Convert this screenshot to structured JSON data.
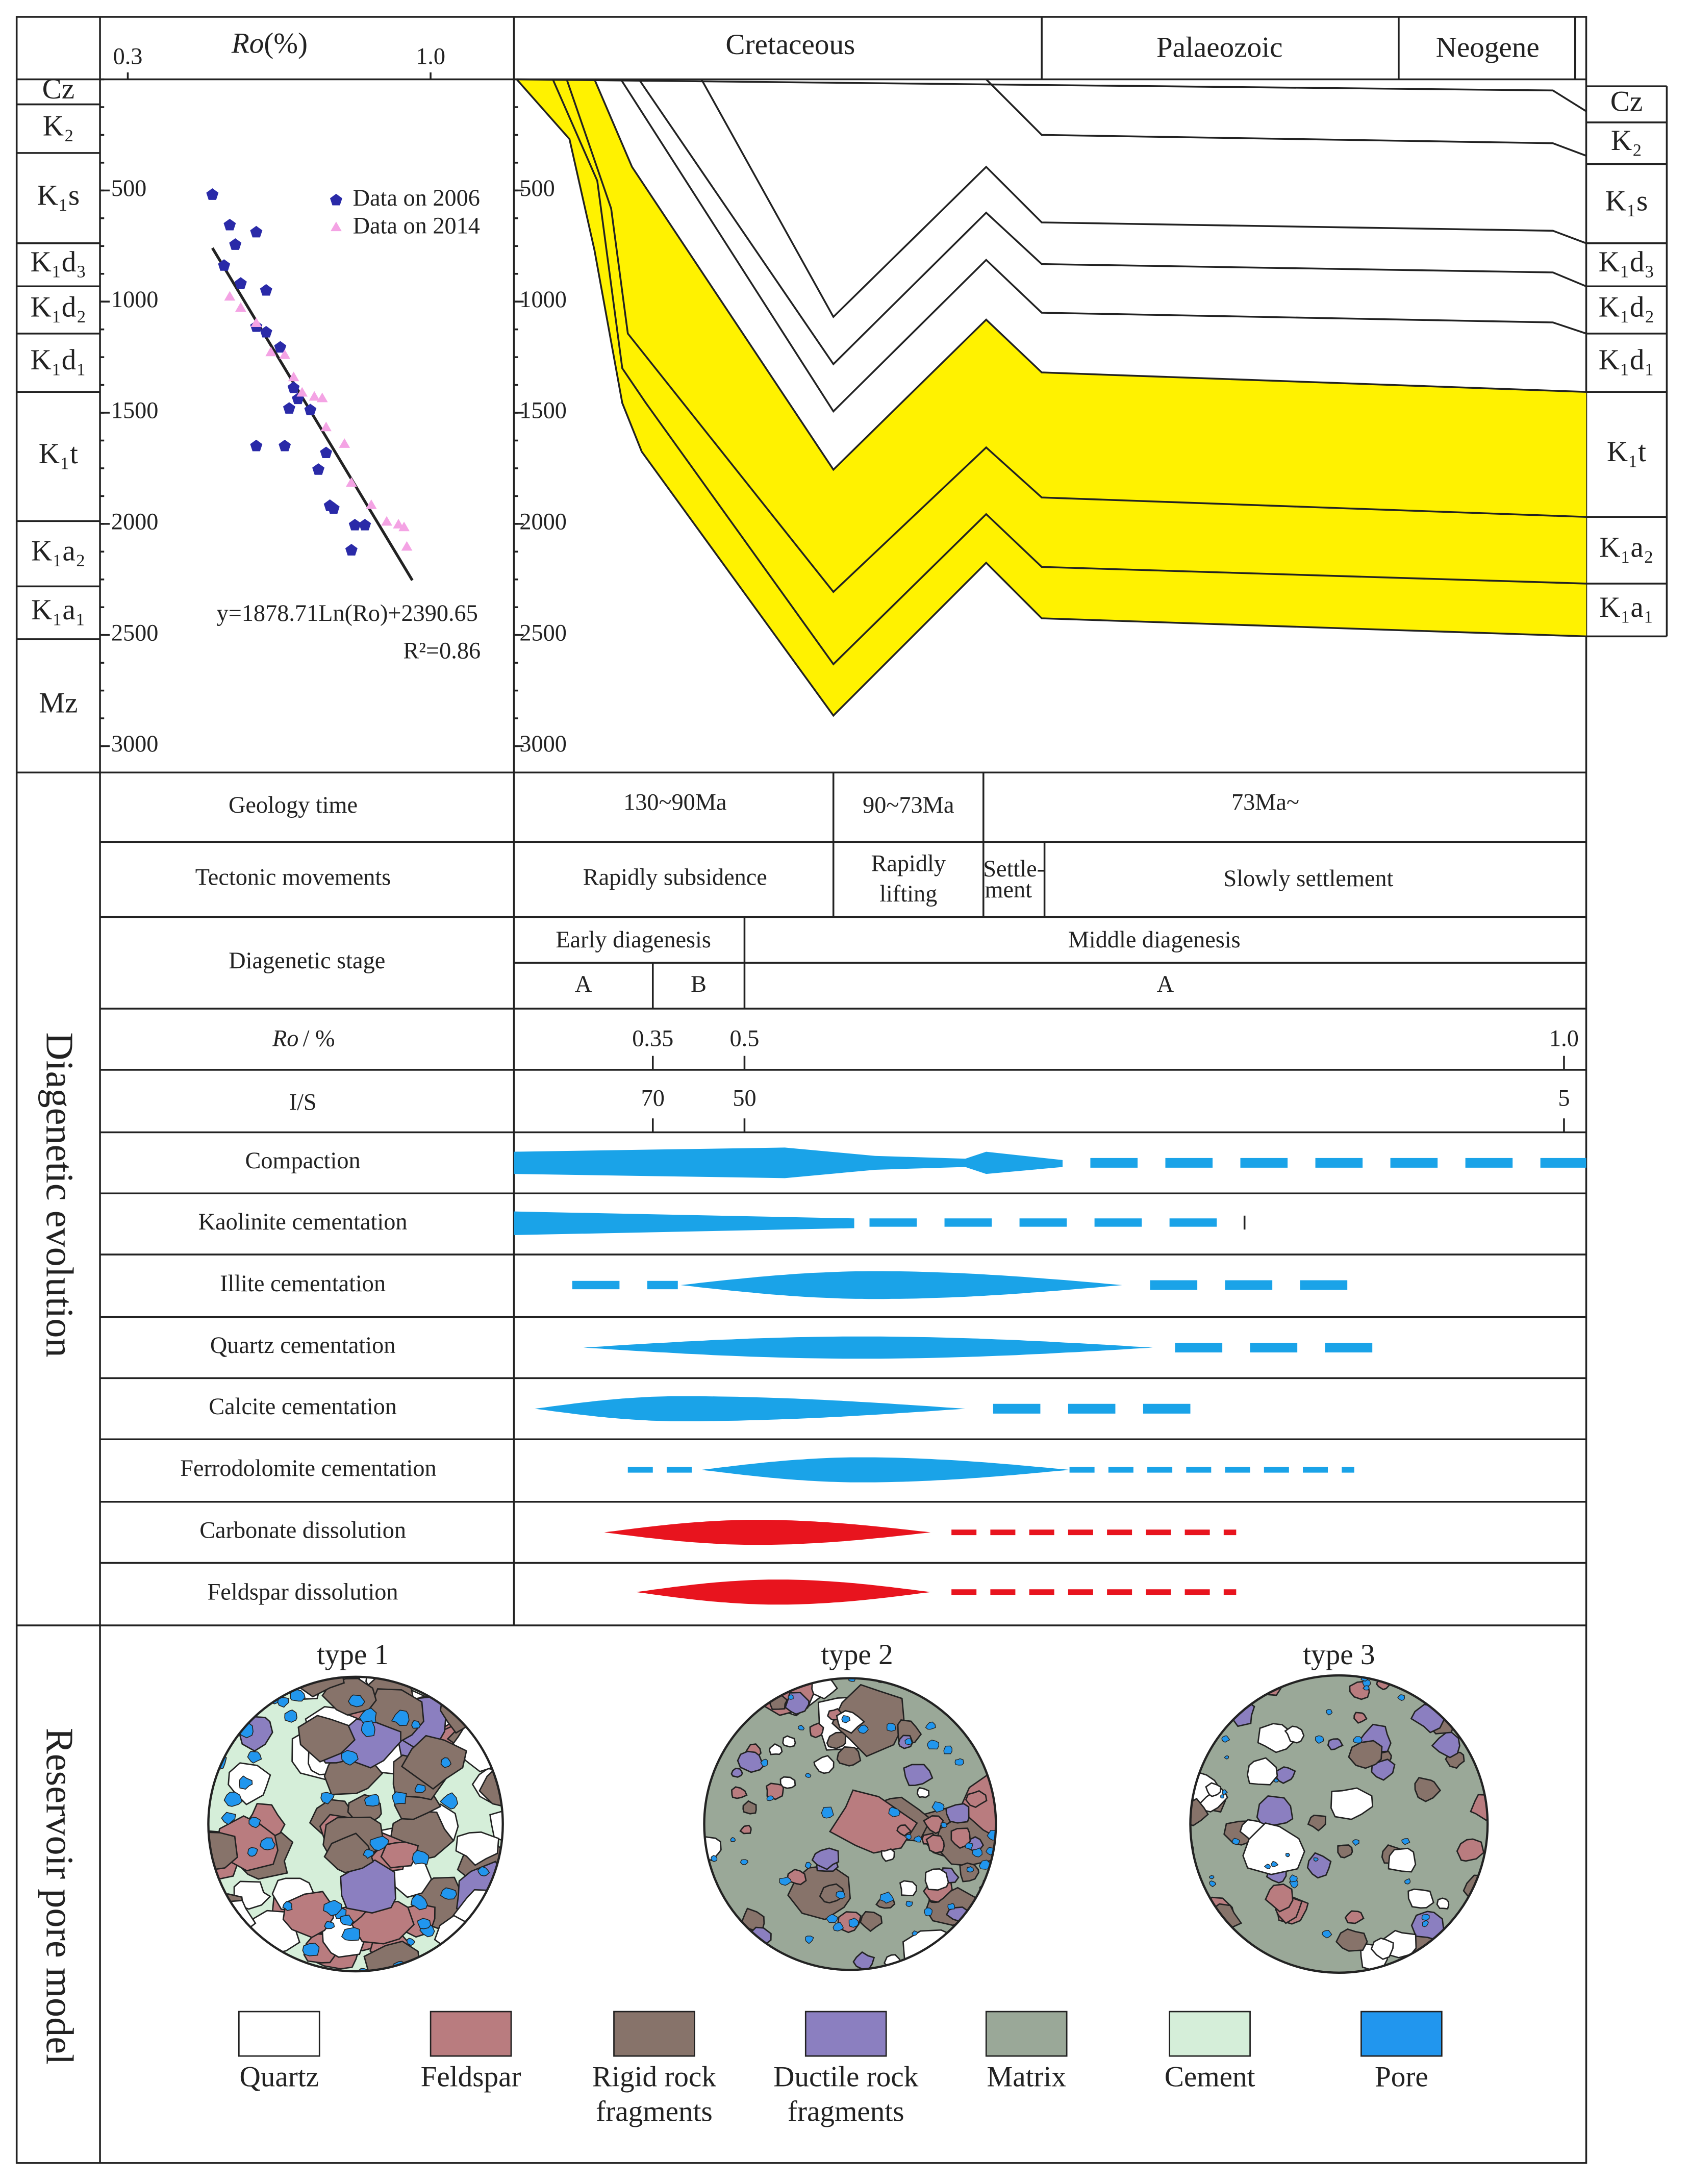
{
  "ro_plot": {
    "x_label_italic": "Ro",
    "x_label_unit": "(%)",
    "x_ticks": [
      0.3,
      {
        "value": 1,
        "label": "1.0"
      }
    ],
    "depth_ticks": [
      500,
      1000,
      1500,
      2000,
      2500,
      3000
    ],
    "strat": [
      "Cz",
      "K₂",
      "K₁s",
      "K₁d₃",
      "K₁d₂",
      "K₁d₁",
      "K₁t",
      "K₁a₂",
      "K₁a₁",
      "Mz"
    ],
    "series": [
      {
        "name": "Data on 2006",
        "color": "#2a2aa8",
        "points": [
          [
            0.42,
            519
          ],
          [
            0.45,
            656
          ],
          [
            0.5,
            688
          ],
          [
            0.46,
            744
          ],
          [
            0.44,
            838
          ],
          [
            0.47,
            919
          ],
          [
            0.52,
            950
          ],
          [
            0.5,
            1113
          ],
          [
            0.52,
            1138
          ],
          [
            0.55,
            1206
          ],
          [
            0.58,
            1388
          ],
          [
            0.59,
            1438
          ],
          [
            0.57,
            1481
          ],
          [
            0.62,
            1488
          ],
          [
            0.5,
            1650
          ],
          [
            0.56,
            1650
          ],
          [
            0.66,
            1681
          ],
          [
            0.64,
            1756
          ],
          [
            0.67,
            1919
          ],
          [
            0.68,
            1931
          ],
          [
            0.74,
            2006
          ],
          [
            0.77,
            2006
          ],
          [
            0.73,
            2119
          ]
        ]
      },
      {
        "name": "Data on 2014",
        "color": "#f4a3e4",
        "points": [
          [
            0.45,
            981
          ],
          [
            0.47,
            1031
          ],
          [
            0.5,
            1100
          ],
          [
            0.53,
            1231
          ],
          [
            0.56,
            1244
          ],
          [
            0.58,
            1344
          ],
          [
            0.6,
            1413
          ],
          [
            0.63,
            1431
          ],
          [
            0.65,
            1438
          ],
          [
            0.66,
            1569
          ],
          [
            0.71,
            1644
          ],
          [
            0.73,
            1819
          ],
          [
            0.79,
            1919
          ],
          [
            0.84,
            1994
          ],
          [
            0.88,
            2006
          ],
          [
            0.9,
            2019
          ],
          [
            0.91,
            2106
          ]
        ]
      }
    ],
    "fit_line": [
      [
        0.42,
        759
      ],
      [
        0.93,
        2254
      ]
    ],
    "equation": "y=1878.71Ln(Ro)+2390.65",
    "r2": "R²=0.86"
  },
  "burial_history": {
    "periods": [
      "Cretaceous",
      "Palaeozoic",
      "Neogene"
    ],
    "strat": [
      "Cz",
      "K₂",
      "K₁s",
      "K₁d₃",
      "K₁d₂",
      "K₁d₁",
      "K₁t",
      "K₁a₂",
      "K₁a₁"
    ]
  },
  "diagenesis": {
    "title": "Diagenetic evolution",
    "geology_time": {
      "label": "Geology time",
      "cells": [
        "130~90Ma",
        "90~73Ma",
        "73Ma~"
      ]
    },
    "tectonic": {
      "label": "Tectonic movements",
      "cells": [
        [
          "Rapidly subsidence"
        ],
        [
          "Rapidly",
          "lifting"
        ],
        [
          "Settle-",
          "ment"
        ],
        [
          "Slowly settlement"
        ]
      ]
    },
    "stage": {
      "label": "Diagenetic  stage",
      "cells": [
        "Early diagenesis",
        "Middle diagenesis"
      ],
      "sub": [
        "A",
        "B",
        "A"
      ]
    },
    "ro": {
      "label_italic": "Ro",
      "label_rest": "/ %",
      "ticks": [
        "0.35",
        "0.5",
        "1.0"
      ]
    },
    "is": {
      "label": "I/S",
      "ticks": [
        70,
        50,
        5
      ]
    },
    "processes": [
      "Compaction",
      "Kaolinite cementation",
      "Illite cementation",
      "Quartz cementation",
      "Calcite cementation",
      "Ferrodolomite cementation",
      "Carbonate dissolution",
      "Feldspar dissolution"
    ]
  },
  "pore_model": {
    "title": "Reservoir pore model",
    "types": [
      "type 1",
      "type 2",
      "type 3"
    ],
    "legend": [
      {
        "lines": [
          "Quartz"
        ],
        "color": "#ffffff"
      },
      {
        "lines": [
          "Feldspar"
        ],
        "color": "#b97c7f"
      },
      {
        "lines": [
          "Rigid rock",
          "fragments"
        ],
        "color": "#87736a"
      },
      {
        "lines": [
          "Ductile rock",
          "fragments"
        ],
        "color": "#8b7fc0"
      },
      {
        "lines": [
          "Matrix"
        ],
        "color": "#9aa898"
      },
      {
        "lines": [
          "Cement"
        ],
        "color": "#d5eed9"
      },
      {
        "lines": [
          "Pore"
        ],
        "color": "#2196ee"
      }
    ]
  }
}
